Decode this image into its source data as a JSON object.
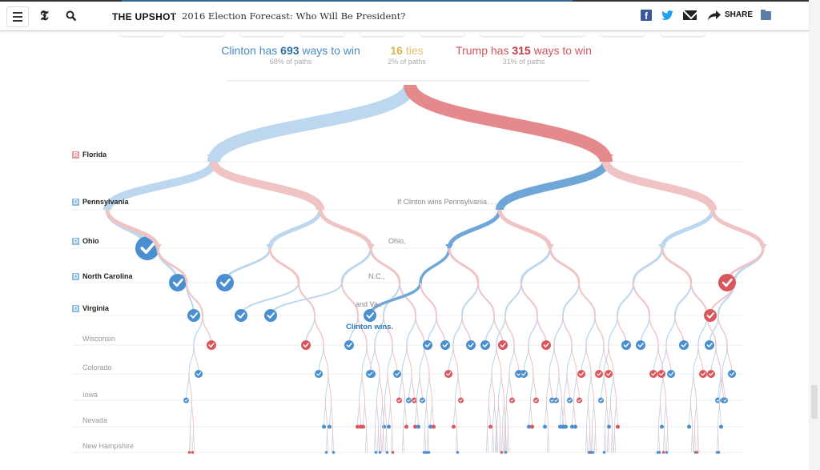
{
  "header": {
    "section": "THE UPSHOT",
    "headline": "2016 Election Forecast: Who Will Be President?",
    "share_label": "SHARE",
    "icons": [
      "menu-icon",
      "nyt-logo",
      "search-icon",
      "facebook-icon",
      "twitter-icon",
      "email-icon",
      "share-icon",
      "folder-icon"
    ],
    "logo_glyph": "𝕿"
  },
  "summary": {
    "clinton": {
      "prefix": "Clinton has ",
      "count": "693",
      "suffix": " ways to win",
      "sub": "68% of paths"
    },
    "ties": {
      "count": "16",
      "suffix": " ties",
      "sub": "2% of paths"
    },
    "trump": {
      "prefix": "Trump has ",
      "count": "315",
      "suffix": " ways to win",
      "sub": "31% of paths"
    }
  },
  "colors": {
    "clinton": "#4a8fd0",
    "clinton_light": "#bcd7ee",
    "trump": "#d9575c",
    "trump_light": "#f0c4c5",
    "highlight_path": "#6ea6d8",
    "trump_path": "#e48a8d"
  },
  "annotations": {
    "pa": "If Clinton wins Pennsylvania. . .",
    "oh": "Ohio,",
    "nc": "N.C.,",
    "va": "and Va..",
    "win": "Clinton wins."
  },
  "chart_data": {
    "type": "tree",
    "title": "Paths to the presidency",
    "states": [
      {
        "name": "Florida",
        "lean": "R",
        "major": true
      },
      {
        "name": "Pennsylvania",
        "lean": "D",
        "major": true
      },
      {
        "name": "Ohio",
        "lean": "D",
        "major": true
      },
      {
        "name": "North Carolina",
        "lean": "D",
        "major": true
      },
      {
        "name": "Virginia",
        "lean": "D",
        "major": true
      },
      {
        "name": "Wisconsin",
        "lean": "",
        "major": false
      },
      {
        "name": "Colorado",
        "lean": "",
        "major": false
      },
      {
        "name": "Iowa",
        "lean": "",
        "major": false
      },
      {
        "name": "Nevada",
        "lean": "",
        "major": false
      },
      {
        "name": "New Hampshire",
        "lean": "",
        "major": false
      }
    ],
    "outcomes": {
      "clinton_paths": 693,
      "ties": 16,
      "trump_paths": 315,
      "clinton_pct": 68,
      "ties_pct": 2,
      "trump_pct": 31
    },
    "highlighted_path": [
      "Florida:Trump",
      "Pennsylvania:Clinton",
      "Ohio:Clinton",
      "North Carolina:Clinton",
      "Virginia:Clinton",
      "Result:Clinton"
    ],
    "decided_nodes": [
      {
        "path": "FL-C,PA-C,OH-C",
        "winner": "C"
      },
      {
        "path": "FL-C,PA-C,OH-T,NC-C",
        "winner": "C"
      },
      {
        "path": "FL-C,PA-T,OH-C,NC-C",
        "winner": "C"
      },
      {
        "path": "FL-C,PA-C,OH-T,NC-T,VA-C",
        "winner": "C"
      },
      {
        "path": "FL-C,PA-T,OH-C,NC-T,VA-C",
        "winner": "C"
      },
      {
        "path": "FL-C,PA-T,OH-T,NC-C,VA-C",
        "winner": "C"
      },
      {
        "path": "FL-T,PA-C,OH-C,NC-C,VA-C",
        "winner": "C"
      },
      {
        "path": "FL-T,PA-T,OH-T,NC-T",
        "winner": "T"
      },
      {
        "path": "FL-T,PA-T,OH-T,NC-C,VA-T",
        "winner": "T"
      }
    ]
  }
}
